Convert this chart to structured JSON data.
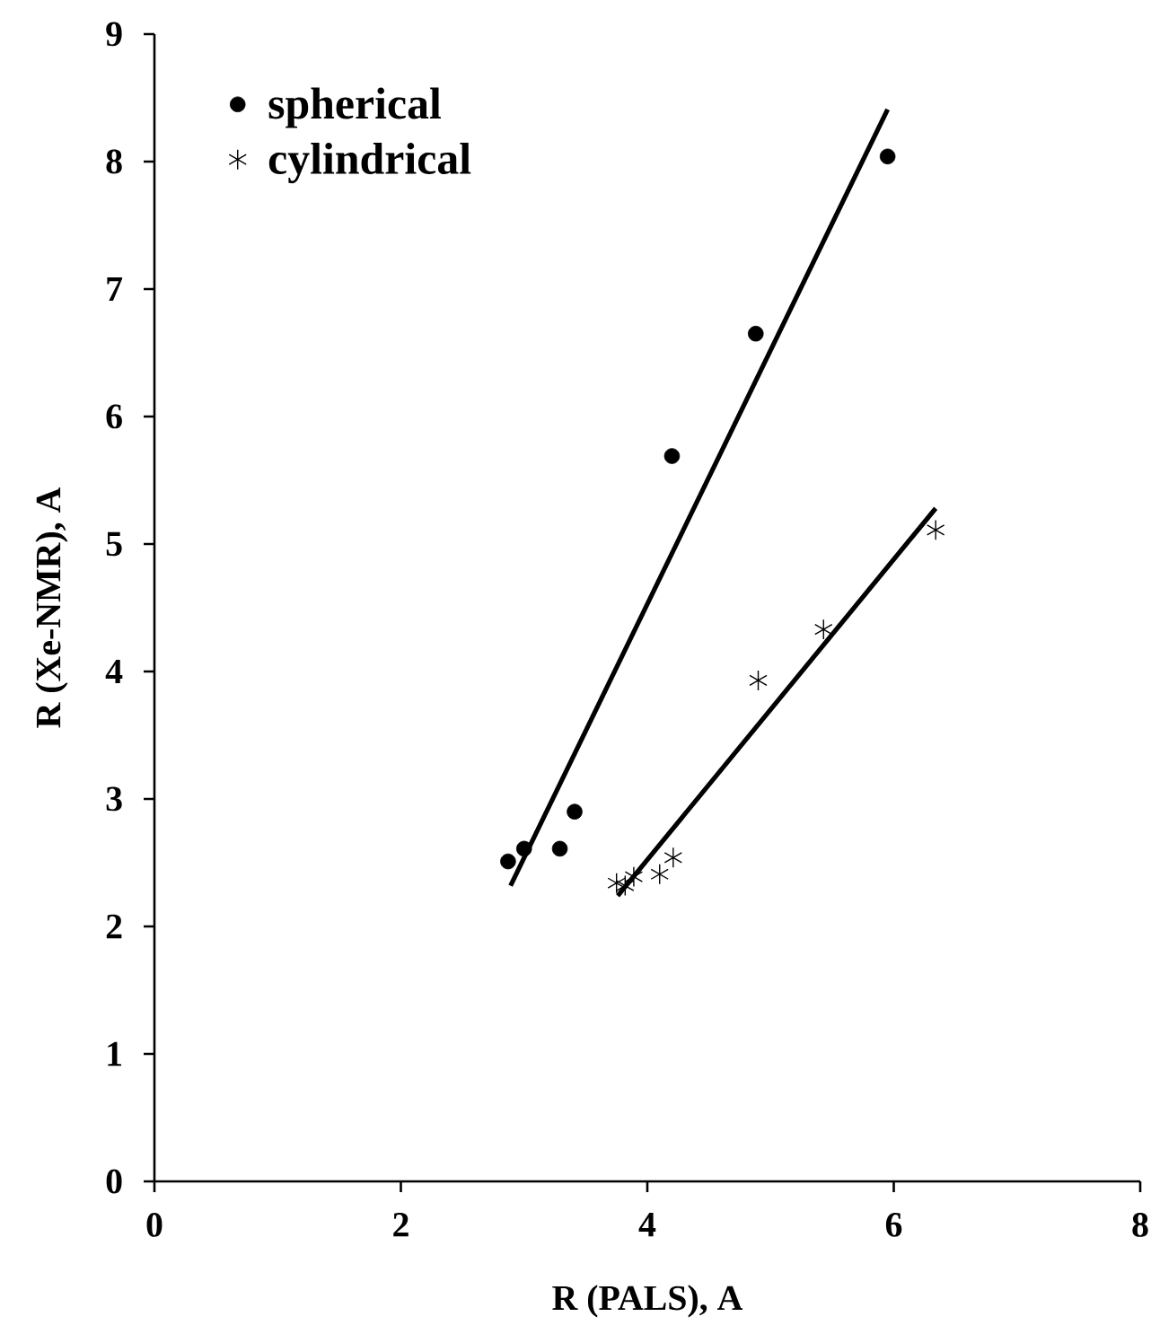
{
  "chart_data": {
    "type": "scatter",
    "xlabel": "R (PALS), A",
    "ylabel": "R (Xe-NMR), A",
    "xlim": [
      0,
      8
    ],
    "ylim": [
      0,
      9
    ],
    "xticks": [
      0,
      2,
      4,
      6,
      8
    ],
    "yticks": [
      0,
      1,
      2,
      3,
      4,
      5,
      6,
      7,
      8,
      9
    ],
    "grid": false,
    "legend": "top left",
    "series": [
      {
        "name": "spherical",
        "marker": "circle",
        "color": "#000000",
        "x": [
          2.87,
          3.0,
          3.29,
          3.41,
          4.2,
          4.88,
          5.95
        ],
        "values": [
          2.51,
          2.61,
          2.61,
          2.9,
          5.69,
          6.65,
          8.04
        ]
      },
      {
        "name": "cylindrical",
        "marker": "cross",
        "color": "#000000",
        "x": [
          3.75,
          3.82,
          3.89,
          4.1,
          4.21,
          4.9,
          5.43,
          6.34
        ],
        "values": [
          2.34,
          2.32,
          2.39,
          2.41,
          2.54,
          3.93,
          4.33,
          5.11
        ]
      },
      {
        "type": "line",
        "marker": "none",
        "color": "#000000",
        "x": [
          2.89,
          5.95
        ],
        "values": [
          2.32,
          8.41
        ]
      },
      {
        "type": "line",
        "marker": "none",
        "color": "#000000",
        "x": [
          3.76,
          6.34
        ],
        "values": [
          2.24,
          5.28
        ]
      }
    ]
  }
}
